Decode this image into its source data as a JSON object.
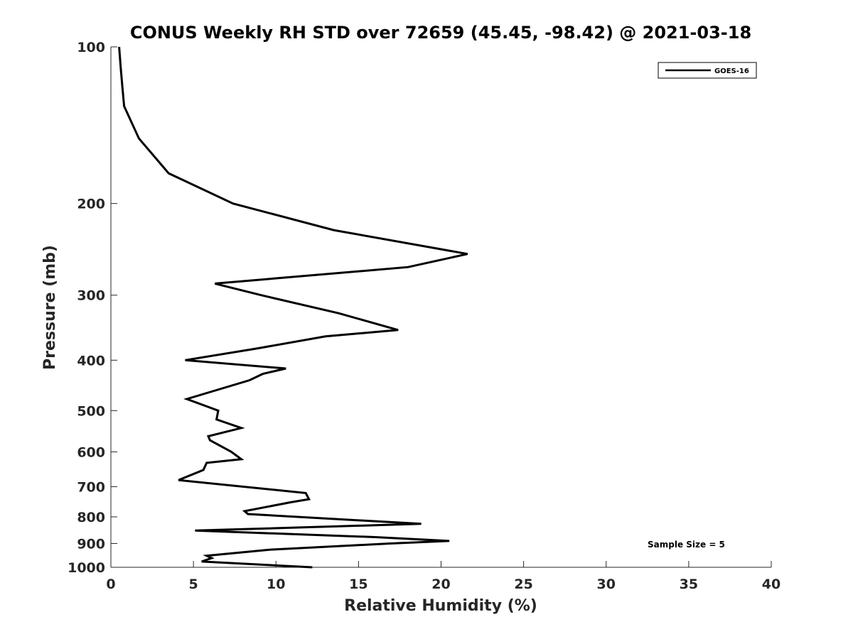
{
  "chart_data": {
    "type": "line",
    "title": "CONUS Weekly RH STD over 72659 (45.45, -98.42) @ 2021-03-18",
    "xlabel": "Relative Humidity (%)",
    "ylabel": "Pressure (mb)",
    "xlim": [
      0,
      40
    ],
    "ylim": [
      100,
      1000
    ],
    "yscale": "log",
    "grid": false,
    "legend_location": "top-right",
    "xticks": [
      0,
      5,
      10,
      15,
      20,
      25,
      30,
      35,
      40
    ],
    "xtick_labels": [
      "0",
      "5",
      "10",
      "15",
      "20",
      "25",
      "30",
      "35",
      "40"
    ],
    "yticks": [
      100,
      200,
      300,
      400,
      500,
      600,
      700,
      800,
      900,
      1000
    ],
    "ytick_labels": [
      "100",
      "200",
      "300",
      "400",
      "500",
      "600",
      "700",
      "800",
      "900",
      "1000"
    ],
    "annotation": "Sample Size = 5",
    "series": [
      {
        "name": "GOES-16",
        "color": "#000000",
        "x": [
          0.5,
          0.6,
          0.7,
          0.8,
          1.7,
          3.5,
          7.4,
          13.5,
          21.6,
          18.0,
          6.3,
          9.1,
          13.8,
          17.4,
          13.0,
          8.8,
          4.5,
          10.6,
          9.2,
          8.4,
          4.6,
          6.5,
          6.4,
          7.9,
          5.9,
          6.0,
          7.3,
          7.9,
          5.8,
          5.6,
          4.1,
          11.8,
          12.0,
          10.9,
          8.1,
          8.3,
          18.8,
          5.1,
          16.0,
          20.5,
          16.9,
          9.6,
          5.8,
          6.1,
          5.5,
          12.2
        ],
        "y": [
          100,
          110,
          120,
          130,
          150,
          175,
          200,
          225,
          250,
          265,
          285,
          300,
          325,
          350,
          360,
          380,
          400,
          415,
          425,
          437,
          475,
          500,
          520,
          540,
          560,
          570,
          600,
          620,
          630,
          650,
          680,
          720,
          740,
          750,
          780,
          790,
          825,
          850,
          875,
          890,
          900,
          925,
          950,
          960,
          975,
          1000
        ]
      }
    ]
  }
}
